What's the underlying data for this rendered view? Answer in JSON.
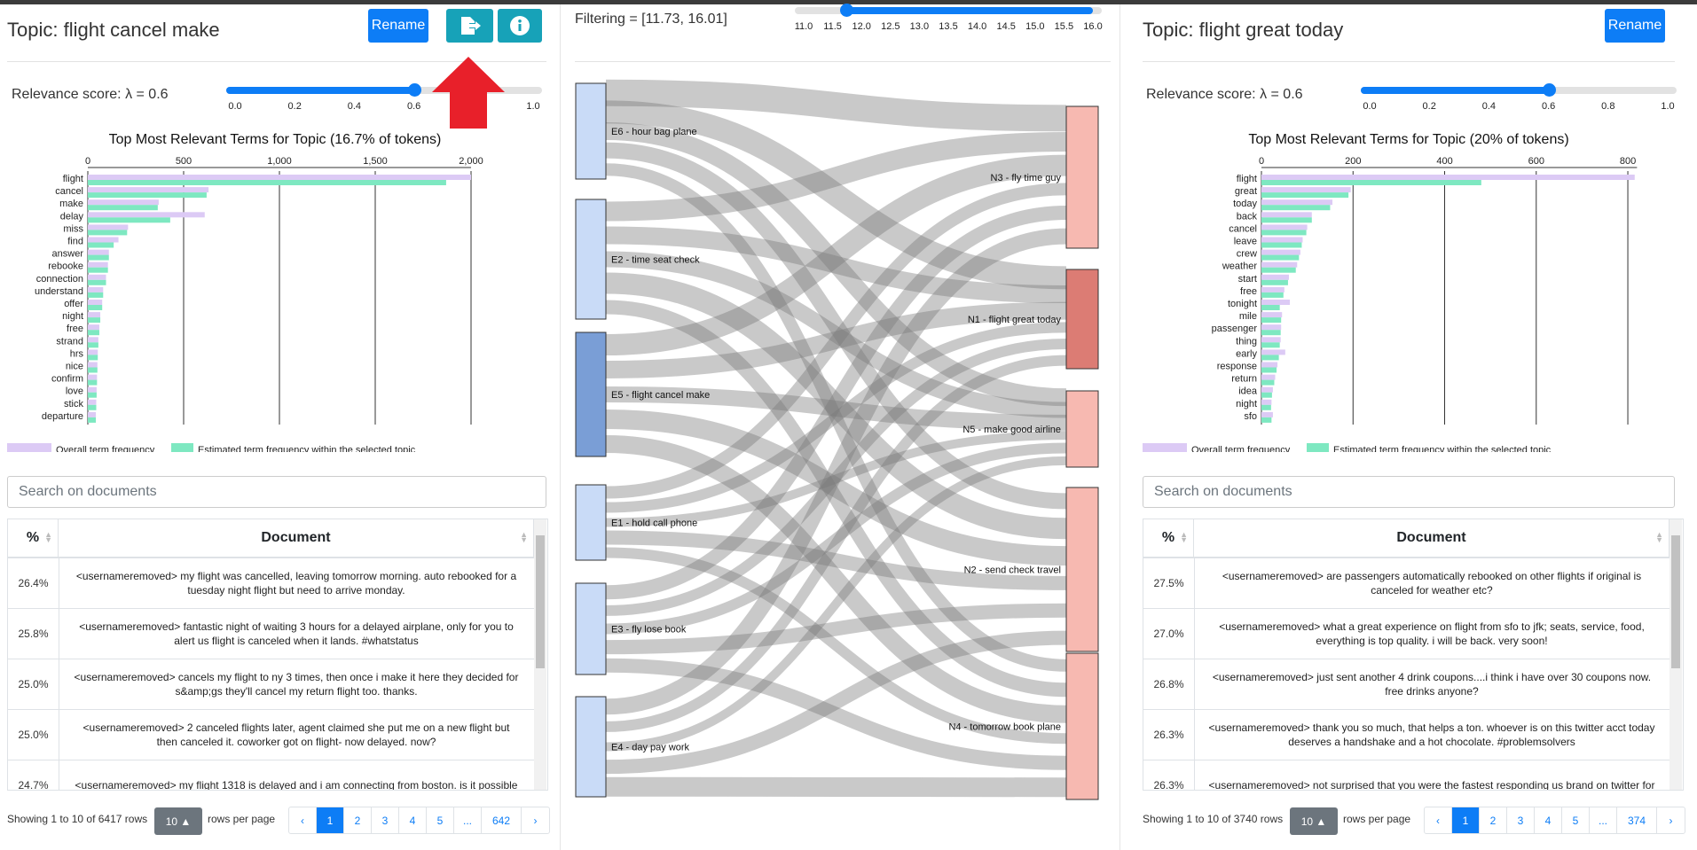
{
  "left": {
    "title": "Topic: flight cancel make",
    "rename_label": "Rename",
    "relevance_label": "Relevance score: λ = 0.6",
    "lambda": 0.6,
    "slider_ticks": [
      "0.0",
      "0.2",
      "0.4",
      "0.6",
      "0.8",
      "1.0"
    ],
    "search_placeholder": "Search on documents",
    "col_pct": "%",
    "col_doc": "Document",
    "rows": [
      {
        "pct": "26.4%",
        "doc": "<usernameremoved> my flight was cancelled, leaving tomorrow morning. auto rebooked for a tuesday night flight but need to arrive monday."
      },
      {
        "pct": "25.8%",
        "doc": "<usernameremoved> fantastic night of waiting 3 hours for a delayed airplane, only for you to alert us flight is canceled when it lands. #whatstatus"
      },
      {
        "pct": "25.0%",
        "doc": "<usernameremoved> cancels my flight to ny 3 times, then once i make it here they decided for s&amp;gs they'll cancel my return flight too. thanks."
      },
      {
        "pct": "25.0%",
        "doc": "<usernameremoved> 2 canceled flights later, agent claimed she put me on a new flight but then canceled it. coworker got on flight- now delayed. now?"
      },
      {
        "pct": "24.7%",
        "doc": "<usernameremoved> my flight 1318 is delayed and i am connecting from boston. is it possible"
      }
    ],
    "showing": "Showing 1 to 10 of 6417 rows",
    "rows_per_page_value": "10",
    "rows_per_page_label": "rows per page",
    "pages": [
      "‹",
      "1",
      "2",
      "3",
      "4",
      "5",
      "...",
      "642",
      "›"
    ]
  },
  "right": {
    "title": "Topic: flight great today",
    "rename_label": "Rename",
    "relevance_label": "Relevance score: λ = 0.6",
    "lambda": 0.6,
    "slider_ticks": [
      "0.0",
      "0.2",
      "0.4",
      "0.6",
      "0.8",
      "1.0"
    ],
    "search_placeholder": "Search on documents",
    "col_pct": "%",
    "col_doc": "Document",
    "rows": [
      {
        "pct": "27.5%",
        "doc": "<usernameremoved> are passengers automatically rebooked on other flights if original is canceled for weather etc?"
      },
      {
        "pct": "27.0%",
        "doc": "<usernameremoved> what a great experience on flight from sfo to jfk; seats, service, food, everything is top quality. i will be back. very soon!"
      },
      {
        "pct": "26.8%",
        "doc": "<usernameremoved> just sent another 4 drink coupons....i think i have over 30 coupons now. free drinks anyone?"
      },
      {
        "pct": "26.3%",
        "doc": "<usernameremoved> thank you so much, that helps a ton. whoever is on this twitter acct today deserves a handshake and a hot chocolate. #problemsolvers"
      },
      {
        "pct": "26.3%",
        "doc": "<usernameremoved> not surprised that you were the fastest responding us brand on twitter for"
      }
    ],
    "showing": "Showing 1 to 10 of 3740 rows",
    "rows_per_page_value": "10",
    "rows_per_page_label": "rows per page",
    "pages": [
      "‹",
      "1",
      "2",
      "3",
      "4",
      "5",
      "...",
      "374",
      "›"
    ]
  },
  "middle": {
    "filter_label": "Filtering = [11.73, 16.01]",
    "filter_range": [
      11.73,
      16.01
    ],
    "filter_ticks": [
      "11.0",
      "11.5",
      "12.0",
      "12.5",
      "13.0",
      "13.5",
      "14.0",
      "14.5",
      "15.0",
      "15.5",
      "16.0"
    ]
  },
  "colors": {
    "primary": "#0d7df6",
    "info": "#17a2b8",
    "overall_freq": "#dccaf5",
    "topic_freq": "#7ee8c1",
    "arrow": "#e8202a",
    "left_node": "#c9dbf7",
    "left_node_selected": "#7a9ed6",
    "right_node": "#f7b9b1",
    "right_node_selected": "#dc7c74"
  },
  "chart_data": [
    {
      "type": "bar",
      "title": "Top Most Relevant Terms for Topic (16.7% of tokens)",
      "categories": [
        "flight",
        "cancel",
        "make",
        "delay",
        "miss",
        "find",
        "answer",
        "rebooke",
        "connection",
        "understand",
        "offer",
        "night",
        "free",
        "strand",
        "hrs",
        "nice",
        "confirm",
        "love",
        "stick",
        "departure"
      ],
      "series": [
        {
          "name": "Overall term frequency",
          "values": [
            2000,
            630,
            370,
            610,
            210,
            160,
            110,
            105,
            95,
            80,
            75,
            65,
            60,
            55,
            52,
            50,
            48,
            46,
            44,
            42
          ]
        },
        {
          "name": "Estimated term frequency within the selected topic",
          "values": [
            1870,
            620,
            365,
            430,
            205,
            135,
            110,
            105,
            95,
            80,
            75,
            65,
            60,
            55,
            52,
            50,
            48,
            46,
            44,
            42
          ]
        }
      ],
      "xticks": [
        "0",
        "500",
        "1,000",
        "1,500",
        "2,000"
      ],
      "xlim": [
        0,
        2000
      ],
      "orientation": "horizontal",
      "legend": "bottom"
    },
    {
      "type": "bar",
      "title": "Top Most Relevant Terms for Topic (20% of tokens)",
      "categories": [
        "flight",
        "great",
        "today",
        "back",
        "cancel",
        "leave",
        "crew",
        "weather",
        "start",
        "free",
        "tonight",
        "mile",
        "passenger",
        "thing",
        "early",
        "response",
        "return",
        "idea",
        "night",
        "sfo"
      ],
      "series": [
        {
          "name": "Overall term frequency",
          "values": [
            815,
            195,
            155,
            110,
            100,
            90,
            85,
            78,
            60,
            50,
            62,
            45,
            43,
            42,
            52,
            35,
            30,
            25,
            22,
            25
          ]
        },
        {
          "name": "Estimated term frequency within the selected topic",
          "values": [
            480,
            190,
            150,
            110,
            98,
            88,
            82,
            75,
            58,
            48,
            40,
            43,
            42,
            40,
            38,
            33,
            28,
            23,
            21,
            22
          ]
        }
      ],
      "xticks": [
        "0",
        "200",
        "400",
        "600",
        "800"
      ],
      "xlim": [
        0,
        820
      ],
      "orientation": "horizontal",
      "legend": "bottom"
    },
    {
      "type": "sankey",
      "left_nodes": [
        "E6 - hour bag plane",
        "E2 - time seat check",
        "E5 - flight cancel make",
        "E1 - hold call phone",
        "E3 - fly lose book",
        "E4 - day pay work"
      ],
      "right_nodes": [
        "N3 - fly time guy",
        "N1 - flight great today",
        "N5 - make good airline",
        "N2 - send check travel",
        "N4 - tomorrow book plane"
      ],
      "selected_left": "E5 - flight cancel make",
      "selected_right": "N1 - flight great today"
    }
  ]
}
